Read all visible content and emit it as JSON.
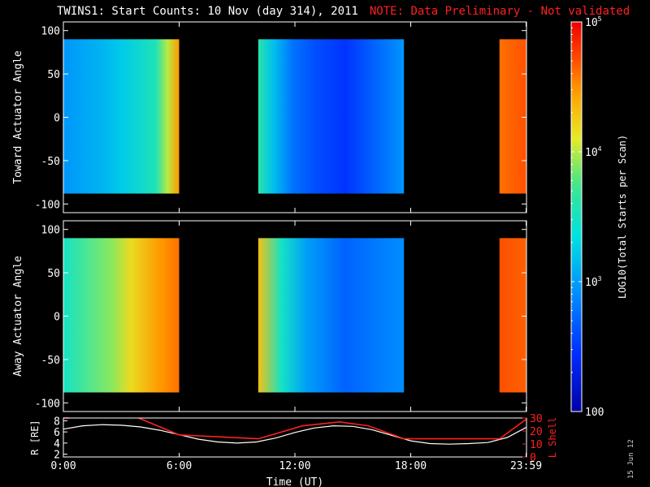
{
  "title": {
    "main": "TWINS1: Start Counts: 10 Nov (day 314), 2011",
    "note": "NOTE: Data Preliminary - Not validated"
  },
  "datestamp": "15 Jun 12",
  "colors": {
    "background": "#000000",
    "note": "#ff2020",
    "l_shell": "#ff2020",
    "r_line": "#ffffff"
  },
  "chart_data": [
    {
      "type": "heatmap",
      "panel": "toward",
      "ylabel": "Toward Actuator Angle",
      "ylim": [
        -110,
        110
      ],
      "yticks": [
        -100,
        -50,
        0,
        50,
        100
      ],
      "xlim": [
        0,
        24
      ],
      "data_extent_y": [
        -88,
        90
      ],
      "blocks": [
        {
          "x": [
            0.0,
            6.0
          ],
          "profile": [
            [
              0,
              900
            ],
            [
              2.0,
              1300
            ],
            [
              3.0,
              1700
            ],
            [
              4.8,
              3500
            ],
            [
              5.4,
              10000
            ],
            [
              6.0,
              30000
            ]
          ]
        },
        {
          "x": [
            10.1,
            17.65
          ],
          "profile": [
            [
              0,
              4000
            ],
            [
              0.8,
              1500
            ],
            [
              1.8,
              600
            ],
            [
              3.0,
              400
            ],
            [
              4.5,
              300
            ],
            [
              6.5,
              600
            ],
            [
              7.55,
              900
            ]
          ]
        },
        {
          "x": [
            22.6,
            23.98
          ],
          "profile": [
            [
              0,
              40000
            ],
            [
              1.38,
              50000
            ]
          ]
        }
      ]
    },
    {
      "type": "heatmap",
      "panel": "away",
      "ylabel": "Away Actuator Angle",
      "ylim": [
        -110,
        110
      ],
      "yticks": [
        -100,
        -50,
        0,
        50,
        100
      ],
      "xlim": [
        0,
        24
      ],
      "data_extent_y": [
        -88,
        90
      ],
      "blocks": [
        {
          "x": [
            0.0,
            6.0
          ],
          "profile": [
            [
              0,
              3000
            ],
            [
              2.5,
              8000
            ],
            [
              3.5,
              15000
            ],
            [
              5.0,
              30000
            ],
            [
              6.0,
              40000
            ]
          ]
        },
        {
          "x": [
            10.1,
            17.65
          ],
          "profile": [
            [
              0,
              20000
            ],
            [
              1.2,
              3000
            ],
            [
              2.5,
              1000
            ],
            [
              4.5,
              500
            ],
            [
              6.5,
              700
            ],
            [
              7.55,
              800
            ]
          ]
        },
        {
          "x": [
            22.6,
            23.98
          ],
          "profile": [
            [
              0,
              50000
            ],
            [
              1.38,
              45000
            ]
          ]
        }
      ]
    },
    {
      "type": "line",
      "panel": "orbit",
      "xlabel": "Time (UT)",
      "xlim": [
        0,
        24
      ],
      "xtick_labels": [
        "0:00",
        "6:00",
        "12:00",
        "18:00",
        "23:59"
      ],
      "xtick_values": [
        0,
        6,
        12,
        18,
        23.98
      ],
      "ylabel_left": "R [RE]",
      "ylim_left": [
        1.5,
        8.5
      ],
      "yticks_left": [
        2,
        4,
        6,
        8
      ],
      "ylabel_right": "L Shell",
      "ylim_right": [
        0,
        30
      ],
      "yticks_right": [
        0,
        10,
        20,
        30
      ],
      "series": [
        {
          "name": "R [RE]",
          "axis": "left",
          "color": "#ffffff",
          "x": [
            0,
            1,
            2,
            3,
            4,
            5,
            6,
            7,
            8,
            9,
            10,
            11,
            12,
            13,
            14,
            15,
            16,
            17,
            18,
            19,
            20,
            21,
            22,
            23,
            23.98
          ],
          "y": [
            6.5,
            7.1,
            7.3,
            7.2,
            6.9,
            6.3,
            5.5,
            4.7,
            4.2,
            4.0,
            4.2,
            4.9,
            5.9,
            6.7,
            7.1,
            7.0,
            6.4,
            5.4,
            4.4,
            3.9,
            3.8,
            3.9,
            4.1,
            5.0,
            6.8
          ]
        },
        {
          "name": "L Shell",
          "axis": "right",
          "color": "#ff2020",
          "segments": [
            {
              "x": [
                0,
                0.3
              ],
              "y": [
                30,
                30
              ]
            },
            {
              "x": [
                3.9,
                6.0,
                10.1,
                12.4,
                14.3,
                15.8,
                17.65,
                22.6,
                23.98
              ],
              "y": [
                30,
                17,
                14,
                24,
                27,
                24,
                14,
                14,
                29
              ]
            }
          ]
        }
      ]
    },
    {
      "type": "colorbar",
      "label": "LOG10(Total Starts per Scan)",
      "scale": "log",
      "range": [
        100,
        100000
      ],
      "tick_labels": [
        "100",
        "10^3",
        "10^4",
        "10^5"
      ],
      "tick_values": [
        100,
        1000,
        10000,
        100000
      ]
    }
  ]
}
